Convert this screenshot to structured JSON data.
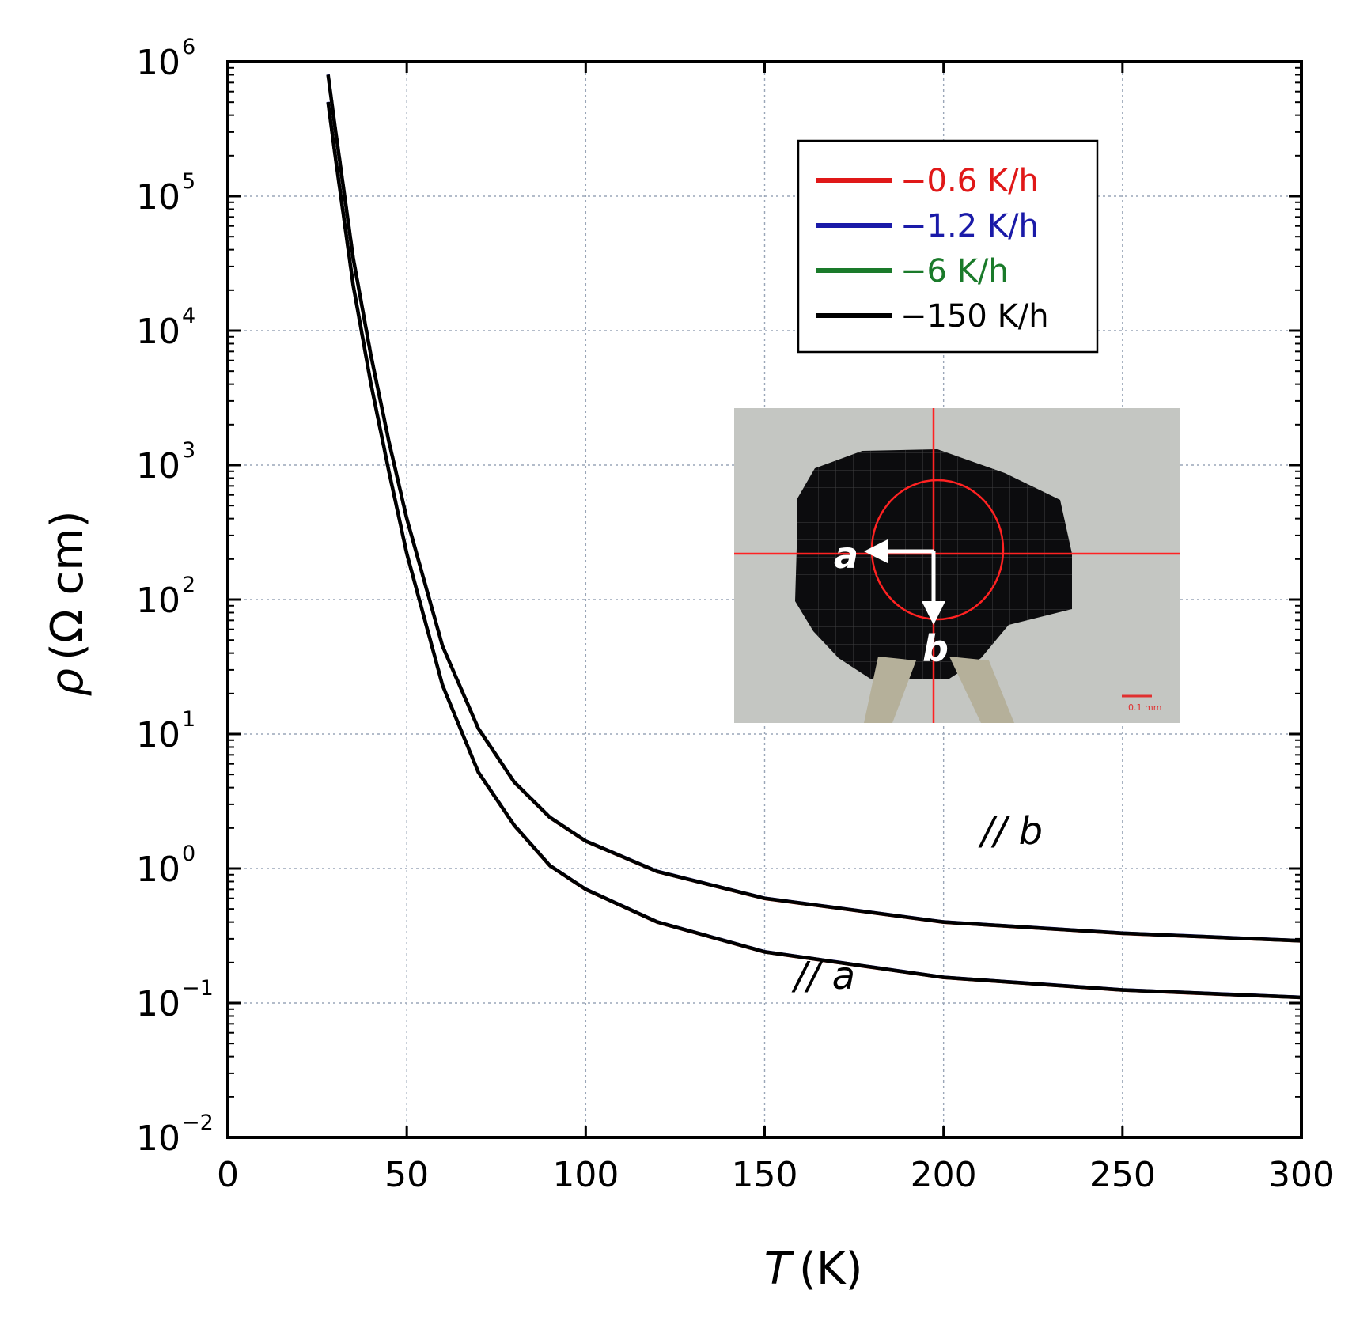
{
  "chart_data": {
    "type": "line",
    "xlabel": "T",
    "xlabel_unit": "(K)",
    "ylabel": "ρ",
    "ylabel_unit": "(Ω cm)",
    "xlim": [
      0,
      300
    ],
    "ylim": [
      0.01,
      1000000
    ],
    "yscale": "log",
    "grid": true,
    "x_ticks": [
      {
        "value": 0,
        "label": "0"
      },
      {
        "value": 50,
        "label": "50"
      },
      {
        "value": 100,
        "label": "100"
      },
      {
        "value": 150,
        "label": "150"
      },
      {
        "value": 200,
        "label": "200"
      },
      {
        "value": 250,
        "label": "250"
      },
      {
        "value": 300,
        "label": "300"
      }
    ],
    "y_ticks": [
      {
        "value": 0.01,
        "base": "10",
        "exp": "−2"
      },
      {
        "value": 0.1,
        "base": "10",
        "exp": "−1"
      },
      {
        "value": 1,
        "base": "10",
        "exp": "0"
      },
      {
        "value": 10,
        "base": "10",
        "exp": "1"
      },
      {
        "value": 100,
        "base": "10",
        "exp": "2"
      },
      {
        "value": 1000,
        "base": "10",
        "exp": "3"
      },
      {
        "value": 10000,
        "base": "10",
        "exp": "4"
      },
      {
        "value": 100000,
        "base": "10",
        "exp": "5"
      },
      {
        "value": 1000000,
        "base": "10",
        "exp": "6"
      }
    ],
    "legend_position": "top-right",
    "legend": [
      {
        "label": "−0.6 K/h",
        "color": "#e01818"
      },
      {
        "label": "−1.2 K/h",
        "color": "#1a1aa8"
      },
      {
        "label": "−6 K/h",
        "color": "#1a7a2a"
      },
      {
        "label": "−150 K/h",
        "color": "#000000"
      }
    ],
    "series": [
      {
        "name": "// a",
        "direction": "a",
        "x": [
          28,
          30,
          35,
          40,
          45,
          50,
          60,
          70,
          80,
          90,
          100,
          120,
          150,
          200,
          250,
          300
        ],
        "y": [
          500000,
          200000,
          22000,
          4000,
          900,
          220,
          23,
          5.2,
          2.1,
          1.05,
          0.7,
          0.4,
          0.24,
          0.155,
          0.125,
          0.11
        ]
      },
      {
        "name": "// b",
        "direction": "b",
        "x": [
          28,
          30,
          35,
          40,
          45,
          50,
          60,
          70,
          80,
          90,
          100,
          120,
          150,
          200,
          250,
          300
        ],
        "y": [
          800000,
          320000,
          35000,
          6500,
          1500,
          400,
          45,
          11,
          4.4,
          2.4,
          1.6,
          0.95,
          0.6,
          0.4,
          0.33,
          0.29
        ]
      }
    ],
    "annotations": {
      "b_label": "// b",
      "a_label": "// a"
    },
    "inset": {
      "axis_a": "a",
      "axis_b": "b",
      "scale_bar": "0.1 mm"
    }
  }
}
